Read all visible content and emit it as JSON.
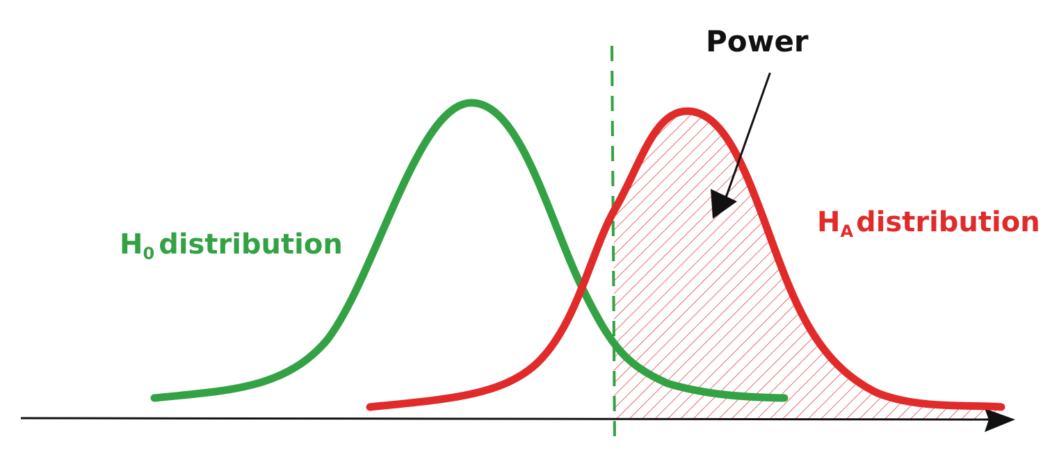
{
  "colors": {
    "null": "#33a244",
    "alt": "#e12a2a",
    "ink": "#111111"
  },
  "labels": {
    "h0_prefix": "H",
    "h0_sub": "0",
    "h0_text": "distribution",
    "ha_prefix": "H",
    "ha_sub": "A",
    "ha_text": "distribution",
    "power": "Power"
  }
}
